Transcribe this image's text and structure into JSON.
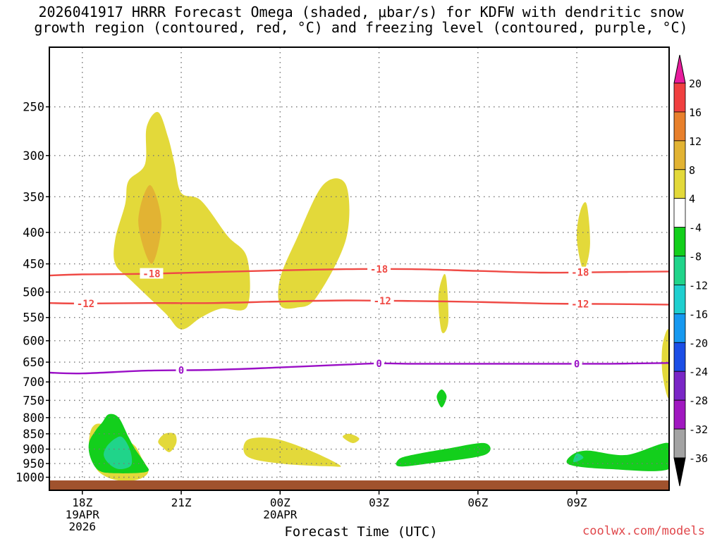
{
  "chart_data": {
    "type": "heatmap",
    "title_line1": "2026041917 HRRR Forecast Omega (shaded, μbar/s) for KDFW with dendritic snow",
    "title_line2": "growth region (contoured, red, °C) and freezing level (contoured, purple, °C)",
    "xlabel": "Forecast Time (UTC)",
    "y_axis": {
      "scale": "log-pressure",
      "range_hpa": [
        1050,
        200
      ],
      "ticks": [
        250,
        300,
        350,
        400,
        450,
        500,
        550,
        600,
        650,
        700,
        750,
        800,
        850,
        900,
        950,
        1000
      ]
    },
    "x_axis": {
      "range_hours": [
        -1,
        17.8
      ],
      "ticks": [
        {
          "hour": 0,
          "label": "18Z",
          "sub1": "19APR",
          "sub2": "2026"
        },
        {
          "hour": 3,
          "label": "21Z",
          "sub1": "",
          "sub2": ""
        },
        {
          "hour": 6,
          "label": "00Z",
          "sub1": "20APR",
          "sub2": ""
        },
        {
          "hour": 9,
          "label": "03Z",
          "sub1": "",
          "sub2": ""
        },
        {
          "hour": 12,
          "label": "06Z",
          "sub1": "",
          "sub2": ""
        },
        {
          "hour": 15,
          "label": "09Z",
          "sub1": "",
          "sub2": ""
        }
      ]
    },
    "colorbar": {
      "labels": [
        "20",
        "16",
        "12",
        "8",
        "4",
        "-4",
        "-8",
        "-12",
        "-16",
        "-20",
        "-24",
        "-28",
        "-32",
        "-36"
      ],
      "colors": [
        "#e81c9d",
        "#f04040",
        "#e8802c",
        "#e2b333",
        "#e3d93a",
        "#ffffff",
        "#13cf1c",
        "#20d48a",
        "#1fcfcf",
        "#1799f0",
        "#1c4ee6",
        "#7a26c6",
        "#a018c0",
        "#a3a3a3",
        "#000000"
      ]
    },
    "shaded_regions": [
      {
        "level": 4,
        "points": [
          [
            1.65,
            1010
          ],
          [
            2.0,
            980
          ],
          [
            1.8,
            930
          ],
          [
            1.6,
            890
          ],
          [
            1.2,
            860
          ],
          [
            0.6,
            820
          ],
          [
            0.3,
            830
          ],
          [
            0.2,
            880
          ],
          [
            0.3,
            930
          ],
          [
            0.5,
            980
          ],
          [
            1.0,
            1010
          ]
        ]
      },
      {
        "level": -4,
        "points": [
          [
            1.95,
            980
          ],
          [
            1.9,
            950
          ],
          [
            1.6,
            900
          ],
          [
            1.4,
            860
          ],
          [
            1.1,
            800
          ],
          [
            0.8,
            790
          ],
          [
            0.6,
            815
          ],
          [
            0.4,
            840
          ],
          [
            0.2,
            880
          ],
          [
            0.25,
            930
          ],
          [
            0.5,
            975
          ],
          [
            1.0,
            985
          ]
        ]
      },
      {
        "level": -8,
        "points": [
          [
            1.45,
            960
          ],
          [
            1.5,
            930
          ],
          [
            1.4,
            890
          ],
          [
            1.2,
            860
          ],
          [
            1.0,
            865
          ],
          [
            0.75,
            890
          ],
          [
            0.65,
            920
          ],
          [
            0.8,
            950
          ],
          [
            1.1,
            970
          ]
        ]
      },
      {
        "level": 4,
        "points": [
          [
            2.65,
            910
          ],
          [
            2.85,
            880
          ],
          [
            2.8,
            850
          ],
          [
            2.5,
            850
          ],
          [
            2.3,
            875
          ],
          [
            2.45,
            895
          ]
        ]
      },
      {
        "level": 4,
        "points": [
          [
            3.0,
            575
          ],
          [
            3.6,
            550
          ],
          [
            4.2,
            532
          ],
          [
            5.0,
            528
          ],
          [
            5.0,
            440
          ],
          [
            4.4,
            405
          ],
          [
            3.6,
            355
          ],
          [
            3.0,
            345
          ],
          [
            2.8,
            310
          ],
          [
            2.6,
            280
          ],
          [
            2.3,
            255
          ],
          [
            1.95,
            270
          ],
          [
            1.9,
            310
          ],
          [
            1.4,
            330
          ],
          [
            1.3,
            360
          ],
          [
            1.0,
            410
          ],
          [
            1.0,
            450
          ],
          [
            1.5,
            480
          ],
          [
            2.5,
            540
          ]
        ]
      },
      {
        "level": 8,
        "points": [
          [
            2.1,
            450
          ],
          [
            2.4,
            385
          ],
          [
            2.05,
            335
          ],
          [
            1.7,
            385
          ]
        ]
      },
      {
        "level": 4,
        "points": [
          [
            6.0,
            525
          ],
          [
            6.5,
            530
          ],
          [
            7.1,
            510
          ],
          [
            8.0,
            410
          ],
          [
            8.0,
            335
          ],
          [
            7.3,
            335
          ],
          [
            6.5,
            410
          ],
          [
            6.0,
            475
          ]
        ]
      },
      {
        "level": 4,
        "points": [
          [
            5.0,
            925
          ],
          [
            6.0,
            950
          ],
          [
            7.5,
            960
          ],
          [
            7.8,
            955
          ],
          [
            6.8,
            900
          ],
          [
            5.8,
            865
          ],
          [
            5.0,
            870
          ]
        ]
      },
      {
        "level": 4,
        "points": [
          [
            7.9,
            860
          ],
          [
            8.2,
            880
          ],
          [
            8.4,
            865
          ],
          [
            8.1,
            850
          ]
        ]
      },
      {
        "level": 4,
        "points": [
          [
            10.9,
            580
          ],
          [
            11.1,
            560
          ],
          [
            11.05,
            480
          ],
          [
            10.95,
            470
          ],
          [
            10.8,
            510
          ]
        ]
      },
      {
        "level": -4,
        "points": [
          [
            10.9,
            770
          ],
          [
            11.05,
            740
          ],
          [
            10.9,
            720
          ],
          [
            10.75,
            740
          ]
        ]
      },
      {
        "level": 4,
        "points": [
          [
            15.2,
            460
          ],
          [
            15.4,
            420
          ],
          [
            15.3,
            360
          ],
          [
            15.1,
            370
          ],
          [
            15.0,
            410
          ]
        ]
      },
      {
        "level": 4,
        "points": [
          [
            17.8,
            740
          ],
          [
            17.6,
            680
          ],
          [
            17.6,
            610
          ],
          [
            17.8,
            580
          ]
        ]
      },
      {
        "level": -4,
        "points": [
          [
            9.6,
            960
          ],
          [
            10.5,
            950
          ],
          [
            12.2,
            920
          ],
          [
            12.2,
            880
          ],
          [
            11.0,
            900
          ],
          [
            10.0,
            920
          ],
          [
            9.6,
            935
          ]
        ]
      },
      {
        "level": -4,
        "points": [
          [
            14.8,
            955
          ],
          [
            16.0,
            970
          ],
          [
            17.8,
            970
          ],
          [
            17.8,
            880
          ],
          [
            16.5,
            920
          ],
          [
            15.3,
            905
          ],
          [
            14.8,
            925
          ]
        ]
      },
      {
        "level": -8,
        "points": [
          [
            14.9,
            945
          ],
          [
            15.2,
            930
          ],
          [
            15.0,
            915
          ]
        ]
      }
    ],
    "contours": [
      {
        "value": -18,
        "label": "-18",
        "color": "#ef4a45",
        "points": [
          [
            -1,
            470
          ],
          [
            0,
            468
          ],
          [
            2,
            467
          ],
          [
            4,
            464
          ],
          [
            6,
            461
          ],
          [
            8,
            459
          ],
          [
            10,
            459
          ],
          [
            12,
            462
          ],
          [
            14,
            465
          ],
          [
            16,
            464
          ],
          [
            17.8,
            463
          ]
        ],
        "label_hours": [
          2.1,
          9.0,
          15.1
        ]
      },
      {
        "value": -12,
        "label": "-12",
        "color": "#ef4a45",
        "points": [
          [
            -1,
            521
          ],
          [
            0,
            522
          ],
          [
            2,
            521
          ],
          [
            4,
            521
          ],
          [
            6,
            518
          ],
          [
            8,
            516
          ],
          [
            10,
            517
          ],
          [
            12,
            519
          ],
          [
            14,
            522
          ],
          [
            16,
            523
          ],
          [
            17.8,
            524
          ]
        ],
        "label_hours": [
          0.1,
          9.1,
          15.1
        ]
      },
      {
        "value": 0,
        "label": "0",
        "color": "#9a0fc6",
        "points": [
          [
            -1,
            676
          ],
          [
            0,
            678
          ],
          [
            2,
            671
          ],
          [
            4,
            669
          ],
          [
            6,
            663
          ],
          [
            8,
            656
          ],
          [
            9,
            653
          ],
          [
            10,
            654
          ],
          [
            12,
            654
          ],
          [
            14,
            654
          ],
          [
            16,
            654
          ],
          [
            17.8,
            652
          ]
        ],
        "label_hours": [
          3.0,
          9.0,
          15.0
        ]
      }
    ],
    "ground": {
      "color": "#a0522d",
      "top_hpa": 1012
    }
  },
  "credit": "coolwx.com/models"
}
